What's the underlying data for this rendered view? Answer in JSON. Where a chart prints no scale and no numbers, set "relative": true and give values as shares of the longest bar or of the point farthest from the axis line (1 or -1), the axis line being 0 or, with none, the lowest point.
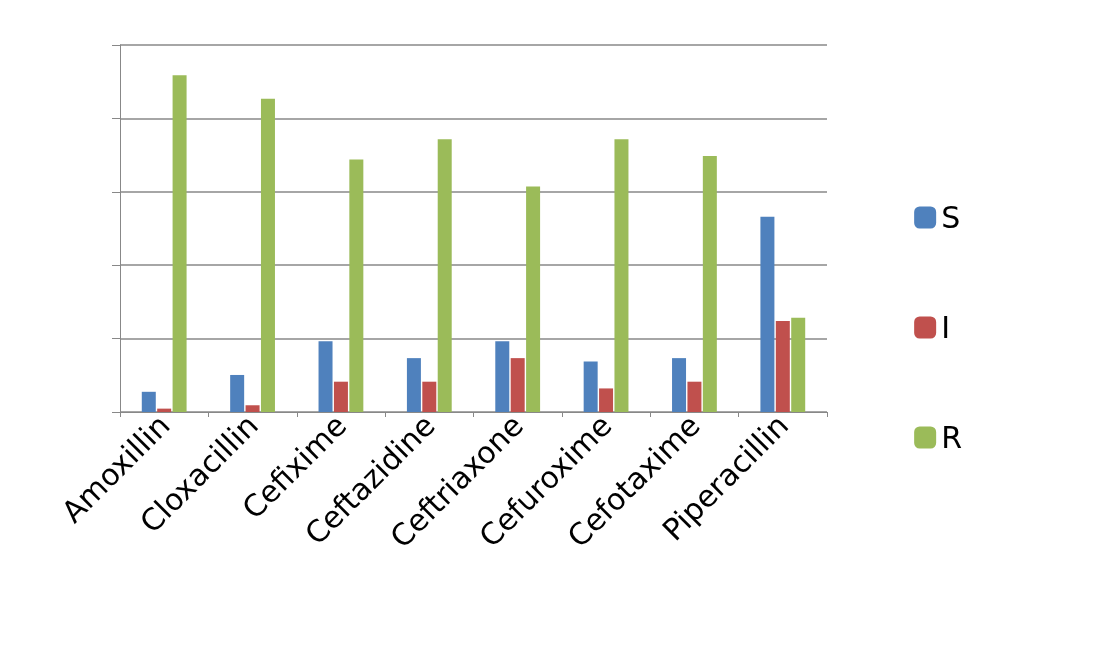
{
  "chart_data": {
    "type": "bar",
    "relative": true,
    "grid": "y",
    "legend": "right",
    "categories": [
      "Amoxillin",
      "Cloxacillin",
      "Cefixime",
      "Ceftazidine",
      "Ceftriaxone",
      "Cefuroxime",
      "Cefotaxime",
      "Piperacillin"
    ],
    "series": [
      {
        "name": "S",
        "color": "#4f81bd",
        "values": [
          0.06,
          0.11,
          0.21,
          0.16,
          0.21,
          0.15,
          0.16,
          0.58
        ]
      },
      {
        "name": "I",
        "color": "#c0504d",
        "values": [
          0.01,
          0.02,
          0.09,
          0.09,
          0.16,
          0.07,
          0.09,
          0.27
        ]
      },
      {
        "name": "R",
        "color": "#9bbb59",
        "values": [
          1,
          0.93,
          0.75,
          0.81,
          0.67,
          0.81,
          0.76,
          0.28
        ]
      }
    ]
  }
}
